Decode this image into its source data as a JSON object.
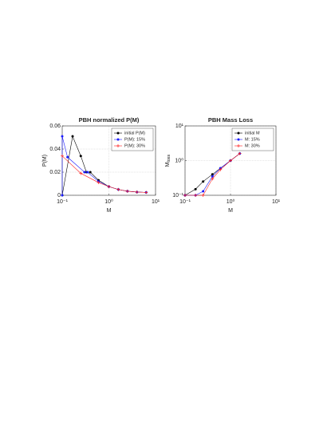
{
  "chart_data": [
    {
      "type": "line",
      "title": "PBH normalized P(M)",
      "xlabel": "M",
      "ylabel": "P(M)",
      "xscale": "log",
      "xlim": [
        0.1,
        10
      ],
      "xticks": [
        {
          "value": 0.1,
          "label": "10⁻¹"
        },
        {
          "value": 1,
          "label": "10⁰"
        },
        {
          "value": 10,
          "label": "10¹"
        }
      ],
      "ylim": [
        0,
        0.06
      ],
      "yticks": [
        0,
        0.02,
        0.04,
        0.06
      ],
      "grid": true,
      "legend": "upper right",
      "series": [
        {
          "name": "initial P(M)",
          "color": "#000000",
          "marker": "circle",
          "x": [
            0.1,
            0.167,
            0.25,
            0.33,
            0.4,
            0.6,
            1,
            1.6,
            2.5,
            4,
            6.3
          ],
          "values": [
            0,
            0.051,
            0.034,
            0.02,
            0.02,
            0.013,
            0.0075,
            0.005,
            0.0035,
            0.0028,
            0.0025
          ]
        },
        {
          "name": "P(M): 15%",
          "color": "#1a1aff",
          "marker": "circle",
          "x": [
            0.1,
            0.1,
            0.13,
            0.3,
            0.35,
            0.6,
            1,
            1.6,
            2.5,
            4,
            6.3
          ],
          "values": [
            0,
            0.051,
            0.033,
            0.02,
            0.02,
            0.012,
            0.0075,
            0.005,
            0.0035,
            0.0028,
            0.0025
          ]
        },
        {
          "name": "P(M): 30%",
          "color": "#ff2020",
          "marker": "plus",
          "x": [
            0.1,
            0.25,
            0.6,
            1,
            1.6,
            2.5,
            4,
            6.3
          ],
          "values": [
            0.034,
            0.019,
            0.011,
            0.0075,
            0.005,
            0.0035,
            0.0028,
            0.0025
          ]
        }
      ]
    },
    {
      "type": "line",
      "title": "PBH Mass Loss",
      "xlabel": "M",
      "ylabel": "M",
      "ylabel_subscript": "loss",
      "xscale": "log",
      "yscale": "log",
      "xlim": [
        0.1,
        10
      ],
      "xticks": [
        {
          "value": 0.1,
          "label": "10⁻¹"
        },
        {
          "value": 1,
          "label": "10⁰"
        },
        {
          "value": 10,
          "label": "10¹"
        }
      ],
      "ylim": [
        0.1,
        10
      ],
      "yticks": [
        {
          "value": 0.1,
          "label": "10⁻¹"
        },
        {
          "value": 1,
          "label": "10⁰"
        },
        {
          "value": 10,
          "label": "10¹"
        }
      ],
      "grid": true,
      "legend": "upper right",
      "series": [
        {
          "name": "initial M",
          "color": "#000000",
          "marker": "circle",
          "x": [
            0.1,
            0.17,
            0.25,
            0.4,
            0.6,
            1,
            1.6
          ],
          "values": [
            0.1,
            0.15,
            0.25,
            0.4,
            0.6,
            1,
            1.6
          ]
        },
        {
          "name": "M: 15%",
          "color": "#1a1aff",
          "marker": "circle",
          "x": [
            0.1,
            0.17,
            0.25,
            0.4,
            0.6,
            1,
            1.6
          ],
          "values": [
            0.1,
            0.1,
            0.13,
            0.35,
            0.6,
            1,
            1.6
          ]
        },
        {
          "name": "M: 30%",
          "color": "#ff2020",
          "marker": "plus",
          "x": [
            0.1,
            0.17,
            0.25,
            0.4,
            0.6,
            1,
            1.6
          ],
          "values": [
            0.1,
            0.1,
            0.1,
            0.3,
            0.55,
            1,
            1.6
          ]
        }
      ]
    }
  ]
}
